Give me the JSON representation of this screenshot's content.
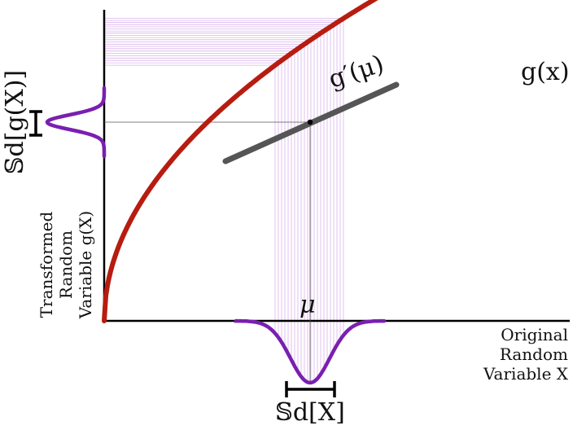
{
  "labels": {
    "g_prime": "g′(μ)",
    "g_x": "g(x)",
    "mu": "μ",
    "sd_x": "𝕊d[X]",
    "sd_gx": "𝕊d[g(X)]",
    "x_axis": [
      "Original",
      "Random",
      "Variable X"
    ],
    "y_axis": [
      "Transformed",
      "Random",
      "Variable g(X)"
    ]
  },
  "colors": {
    "curve": "#b71c10",
    "tangent": "#555555",
    "density": "#7a1fb0",
    "guide": "#d9b3ec",
    "axis": "#000000"
  }
}
